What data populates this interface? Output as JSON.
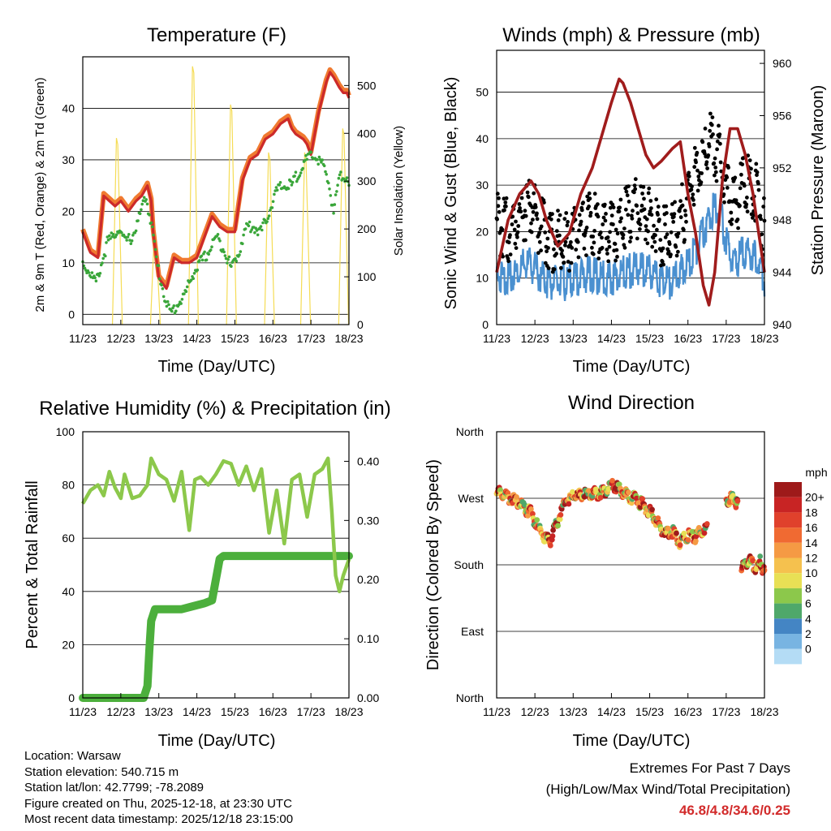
{
  "chart_data": [
    {
      "id": "temperature",
      "type": "line",
      "title": "Temperature (F)",
      "xlabel": "Time (Day/UTC)",
      "ylabel": "2m & 9m T (Red, Orange) & 2m Td (Green)",
      "y2label": "Solar Insolation (Yellow)",
      "x_ticks": [
        "11/23",
        "12/23",
        "13/23",
        "14/23",
        "15/23",
        "16/23",
        "17/23",
        "18/23"
      ],
      "xlim": [
        0,
        7
      ],
      "ylim": [
        -2,
        50
      ],
      "y_ticks": [
        0,
        10,
        20,
        30,
        40
      ],
      "y2lim": [
        0,
        560
      ],
      "y2_ticks": [
        0,
        100,
        200,
        300,
        400,
        500
      ],
      "series": [
        {
          "name": "2m T",
          "color": "#cc2a2a",
          "x": [
            0,
            0.2,
            0.4,
            0.55,
            0.7,
            0.85,
            1.0,
            1.2,
            1.4,
            1.55,
            1.7,
            1.8,
            1.85,
            2.0,
            2.2,
            2.4,
            2.6,
            2.8,
            3.0,
            3.2,
            3.4,
            3.6,
            3.8,
            4.0,
            4.1,
            4.2,
            4.4,
            4.6,
            4.8,
            5.0,
            5.2,
            5.4,
            5.5,
            5.6,
            5.8,
            5.9,
            6.0,
            6.2,
            6.4,
            6.5,
            6.6,
            6.75,
            6.85,
            6.95,
            7.0
          ],
          "y": [
            16,
            12,
            11,
            23,
            22,
            21,
            22,
            20,
            22,
            23,
            25,
            22,
            16,
            7,
            5,
            11,
            10,
            10,
            11,
            15,
            19,
            17,
            16,
            16,
            21,
            26,
            30,
            31,
            34,
            35,
            37,
            38,
            36,
            35,
            34,
            33,
            31,
            39,
            45,
            47,
            46,
            44,
            43,
            43,
            42
          ]
        },
        {
          "name": "9m T",
          "color": "#f07a30",
          "x": [
            0,
            0.2,
            0.4,
            0.55,
            0.7,
            0.85,
            1.0,
            1.2,
            1.4,
            1.55,
            1.7,
            1.8,
            1.85,
            2.0,
            2.2,
            2.4,
            2.6,
            2.8,
            3.0,
            3.2,
            3.4,
            3.6,
            3.8,
            4.0,
            4.1,
            4.2,
            4.4,
            4.6,
            4.8,
            5.0,
            5.2,
            5.4,
            5.5,
            5.6,
            5.8,
            5.9,
            6.0,
            6.2,
            6.4,
            6.5,
            6.6,
            6.75,
            6.85,
            6.95,
            7.0
          ],
          "y": [
            16.5,
            12.5,
            11.5,
            23.5,
            22.5,
            21.5,
            22.5,
            20.5,
            22.5,
            23.5,
            25.5,
            22.5,
            16.5,
            7.5,
            5.5,
            11.5,
            10.5,
            10.5,
            11.5,
            15.5,
            19.5,
            17.5,
            16.5,
            16.5,
            21.5,
            26.5,
            30.5,
            31.5,
            34.5,
            35.5,
            37.5,
            38.5,
            36.5,
            35.5,
            34.5,
            33.5,
            31.5,
            39.5,
            45.5,
            47.5,
            46.5,
            44.5,
            43.5,
            43.5,
            42.5
          ]
        },
        {
          "name": "2m Td",
          "color": "#3aa63a",
          "x": [
            0,
            0.2,
            0.35,
            0.5,
            0.65,
            0.8,
            0.95,
            1.1,
            1.3,
            1.5,
            1.65,
            1.8,
            1.95,
            2.1,
            2.3,
            2.5,
            2.7,
            2.9,
            3.1,
            3.3,
            3.5,
            3.7,
            3.9,
            4.1,
            4.3,
            4.5,
            4.7,
            4.9,
            5.1,
            5.3,
            5.5,
            5.7,
            5.9,
            6.1,
            6.3,
            6.45,
            6.6,
            6.75,
            6.9,
            7.0
          ],
          "y": [
            10,
            8,
            6,
            10,
            14,
            15,
            17,
            14,
            15,
            19,
            23,
            18,
            10,
            5,
            0,
            2,
            4,
            8,
            10,
            12,
            15,
            13,
            9,
            12,
            17,
            17,
            16,
            20,
            24,
            25,
            25,
            28,
            30,
            31,
            29,
            26,
            20,
            27,
            27,
            26
          ]
        },
        {
          "name": "Solar Insolation",
          "color": "#f5dc55",
          "axis": "y2",
          "peaks_x": [
            0.9,
            1.9,
            2.9,
            3.9,
            4.9,
            5.85,
            6.85
          ],
          "peaks_y": [
            390,
            200,
            540,
            460,
            360,
            360,
            410
          ]
        }
      ]
    },
    {
      "id": "winds",
      "type": "line",
      "title": "Winds (mph) & Pressure (mb)",
      "xlabel": "Time (Day/UTC)",
      "ylabel": "Sonic Wind & Gust (Blue, Black)",
      "y2label": "Station Pressure (Maroon)",
      "x_ticks": [
        "11/23",
        "12/23",
        "13/23",
        "14/23",
        "15/23",
        "16/23",
        "17/23",
        "18/23"
      ],
      "xlim": [
        0,
        7
      ],
      "ylim": [
        0,
        59
      ],
      "y_ticks": [
        0,
        10,
        20,
        30,
        40,
        50
      ],
      "y2lim": [
        940,
        961
      ],
      "y2_ticks": [
        940,
        944,
        948,
        952,
        956,
        960
      ],
      "series": [
        {
          "name": "Gust",
          "color": "#000000",
          "x": [
            0,
            0.3,
            0.6,
            0.9,
            1.2,
            1.5,
            1.8,
            2.1,
            2.4,
            2.7,
            3.0,
            3.3,
            3.6,
            3.9,
            4.2,
            4.5,
            4.8,
            5.1,
            5.4,
            5.6,
            5.8,
            6.0,
            6.2,
            6.5,
            6.8,
            7.0
          ],
          "y": [
            22,
            20,
            24,
            26,
            20,
            18,
            17,
            20,
            22,
            21,
            20,
            22,
            25,
            24,
            20,
            18,
            22,
            30,
            36,
            40,
            36,
            30,
            25,
            32,
            28,
            20
          ]
        },
        {
          "name": "Wind",
          "color": "#4a90d0",
          "x": [
            0,
            0.3,
            0.6,
            0.9,
            1.2,
            1.5,
            1.8,
            2.1,
            2.4,
            2.7,
            3.0,
            3.3,
            3.6,
            3.9,
            4.2,
            4.5,
            4.8,
            5.1,
            5.4,
            5.6,
            5.8,
            6.0,
            6.2,
            6.5,
            6.8,
            7.0
          ],
          "y": [
            11,
            10,
            12,
            13,
            10,
            9,
            9,
            10,
            11,
            10,
            10,
            11,
            12,
            12,
            10,
            9,
            11,
            14,
            20,
            24,
            26,
            18,
            13,
            16,
            14,
            10
          ]
        },
        {
          "name": "Pressure",
          "color": "#a01c1c",
          "axis": "y2",
          "x": [
            0,
            0.3,
            0.6,
            0.9,
            1.1,
            1.3,
            1.6,
            1.9,
            2.2,
            2.5,
            2.8,
            3.0,
            3.2,
            3.3,
            3.5,
            3.7,
            3.9,
            4.1,
            4.3,
            4.6,
            4.8,
            5.0,
            5.2,
            5.4,
            5.55,
            5.7,
            5.9,
            6.1,
            6.3,
            6.5,
            6.7,
            6.85,
            7.0
          ],
          "y": [
            944,
            948,
            950,
            951,
            950,
            948,
            946,
            947,
            950,
            952,
            955,
            957,
            958.8,
            958.5,
            957,
            955,
            953,
            952,
            952.5,
            953.5,
            954,
            950,
            947,
            943,
            941.5,
            944,
            951,
            955,
            955,
            953,
            950,
            947,
            944
          ]
        }
      ]
    },
    {
      "id": "humidity",
      "type": "line",
      "title": "Relative Humidity (%) & Precipitation (in)",
      "xlabel": "Time (Day/UTC)",
      "ylabel": "Percent & Total Rainfall",
      "x_ticks": [
        "11/23",
        "12/23",
        "13/23",
        "14/23",
        "15/23",
        "16/23",
        "17/23",
        "18/23"
      ],
      "xlim": [
        0,
        7
      ],
      "ylim": [
        0,
        100
      ],
      "y_ticks": [
        0,
        20,
        40,
        60,
        80,
        100
      ],
      "y2lim": [
        0,
        0.45
      ],
      "y2_ticks": [
        "0.00",
        "0.10",
        "0.20",
        "0.30",
        "0.40"
      ],
      "series": [
        {
          "name": "Relative Humidity",
          "color": "#8cc84b",
          "x": [
            0,
            0.2,
            0.4,
            0.55,
            0.7,
            0.85,
            1.0,
            1.1,
            1.3,
            1.5,
            1.7,
            1.8,
            2.0,
            2.2,
            2.4,
            2.6,
            2.8,
            2.95,
            3.1,
            3.3,
            3.5,
            3.7,
            3.9,
            4.1,
            4.3,
            4.5,
            4.7,
            4.9,
            5.1,
            5.3,
            5.5,
            5.7,
            5.9,
            6.1,
            6.3,
            6.45,
            6.55,
            6.65,
            6.75,
            6.85,
            7.0
          ],
          "y": [
            73,
            78,
            80,
            76,
            85,
            79,
            75,
            84,
            75,
            76,
            80,
            90,
            84,
            82,
            74,
            85,
            63,
            82,
            83,
            80,
            84,
            89,
            88,
            80,
            87,
            78,
            86,
            62,
            78,
            58,
            82,
            84,
            68,
            84,
            86,
            90,
            70,
            46,
            40,
            46,
            52
          ]
        },
        {
          "name": "Total Rainfall",
          "color": "#4caf3c",
          "axis": "y2",
          "x": [
            0,
            1.5,
            1.6,
            1.7,
            1.75,
            1.8,
            1.9,
            2.2,
            2.6,
            2.9,
            3.2,
            3.4,
            3.5,
            3.6,
            3.7,
            4.0,
            5.0,
            6.0,
            7.0
          ],
          "y": [
            0,
            0,
            0,
            0.02,
            0.08,
            0.13,
            0.15,
            0.15,
            0.15,
            0.155,
            0.16,
            0.165,
            0.2,
            0.235,
            0.24,
            0.24,
            0.24,
            0.24,
            0.24
          ]
        }
      ]
    },
    {
      "id": "wind_direction",
      "type": "scatter",
      "title": "Wind Direction",
      "xlabel": "Time (Day/UTC)",
      "ylabel": "Direction (Colored By Speed)",
      "x_ticks": [
        "11/23",
        "12/23",
        "13/23",
        "14/23",
        "15/23",
        "16/23",
        "17/23",
        "18/23"
      ],
      "xlim": [
        0,
        7
      ],
      "ylim": [
        0,
        360
      ],
      "y_ticks": [
        "North",
        "East",
        "South",
        "West",
        "North"
      ],
      "colorbar": {
        "label": "mph",
        "levels": [
          "20+",
          "18",
          "16",
          "14",
          "12",
          "10",
          "8",
          "6",
          "4",
          "2",
          "0"
        ],
        "colors": [
          "#9e1a1a",
          "#c82424",
          "#e0412c",
          "#f06a32",
          "#f59a44",
          "#f5c14e",
          "#e8e055",
          "#8cc84b",
          "#4fa86a",
          "#4485c4",
          "#78b4e2",
          "#b4dcf5"
        ]
      },
      "segments": [
        {
          "x": [
            0,
            0.3,
            0.6,
            0.9,
            1.1,
            1.25,
            1.4,
            1.6,
            1.8,
            2.0,
            2.4,
            2.8,
            3.0,
            3.2,
            3.4,
            3.6,
            3.8,
            4.0,
            4.2,
            4.4,
            4.6,
            4.8,
            5.0,
            5.2,
            5.4,
            5.5
          ],
          "y": [
            278,
            272,
            262,
            250,
            228,
            218,
            212,
            240,
            268,
            272,
            275,
            278,
            288,
            282,
            274,
            270,
            262,
            252,
            238,
            220,
            225,
            210,
            220,
            218,
            228,
            230
          ]
        },
        {
          "x": [
            6.0,
            6.1,
            6.2,
            6.3
          ],
          "y": [
            265,
            270,
            272,
            260
          ]
        },
        {
          "x": [
            6.4,
            6.5,
            6.6,
            6.7,
            6.8,
            6.9,
            7.0
          ],
          "y": [
            178,
            182,
            188,
            180,
            176,
            185,
            168
          ]
        }
      ]
    }
  ],
  "footer": {
    "location": "Location: Warsaw",
    "elevation": "Station elevation: 540.715 m",
    "latlon": "Station lat/lon: 42.7799; -78.2089",
    "created": "Figure created on Thu, 2025-12-18, at 23:30 UTC",
    "recent": "Most recent data timestamp: 2025/12/18 23:15:00"
  },
  "extremes": {
    "title": "Extremes For Past 7 Days",
    "subtitle": "(High/Low/Max Wind/Total Precipitation)",
    "values": "46.8/4.8/34.6/0.25"
  }
}
